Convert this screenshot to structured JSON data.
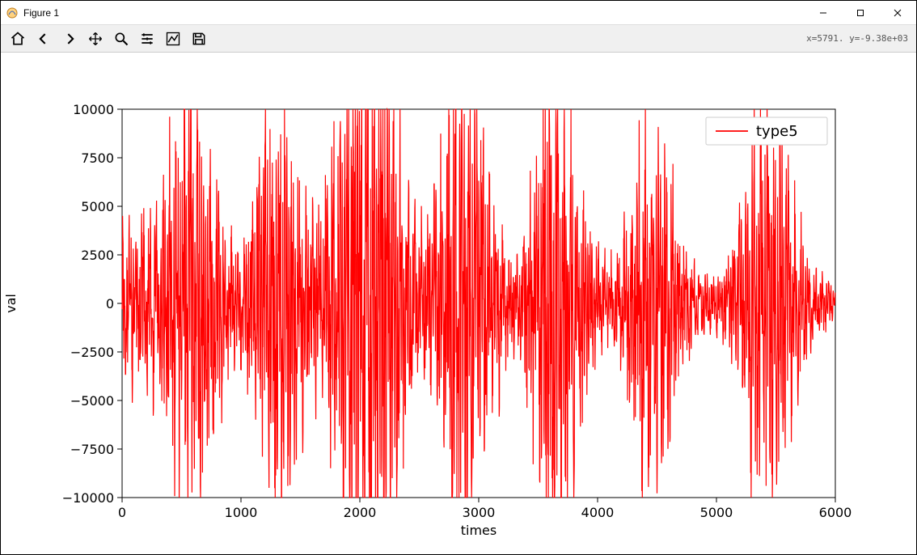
{
  "window": {
    "title": "Figure 1",
    "min_tooltip": "Minimize",
    "max_tooltip": "Maximize",
    "close_tooltip": "Close"
  },
  "toolbar": {
    "home": "Home",
    "back": "Back",
    "forward": "Forward",
    "pan": "Pan",
    "zoom": "Zoom",
    "subplots": "Configure subplots",
    "axes": "Edit axis",
    "save": "Save",
    "coord_readout": "x=5791.   y=-9.38e+03"
  },
  "chart": {
    "type": "line",
    "xlabel": "times",
    "ylabel": "val",
    "xlim": [
      0,
      6000
    ],
    "ylim": [
      -10000,
      10000
    ],
    "xtick_step": 1000,
    "ytick_step": 2500,
    "background_color": "#ffffff",
    "axis_color": "#000000",
    "tick_fontsize": 16,
    "label_fontsize": 16,
    "legend": {
      "position": "upper-right",
      "entries": [
        {
          "label": "type5",
          "color": "#ff0000"
        }
      ],
      "fontsize": 18,
      "border_color": "#cccccc"
    },
    "series": [
      {
        "name": "type5",
        "color": "#ff0000",
        "linewidth": 1.2,
        "burst_centers": [
          80,
          500,
          650,
          1250,
          1400,
          1950,
          2100,
          2250,
          2800,
          2950,
          3600,
          3750,
          4400,
          4550,
          5350,
          5500
        ],
        "burst_widths": [
          120,
          180,
          160,
          140,
          180,
          180,
          160,
          160,
          150,
          170,
          140,
          170,
          130,
          160,
          150,
          170
        ],
        "burst_amps": [
          2500,
          5000,
          6000,
          5000,
          4500,
          8000,
          6500,
          5000,
          5500,
          6500,
          6500,
          5000,
          4800,
          4000,
          4500,
          5000
        ],
        "baseline_amp": 900,
        "n_points": 6000,
        "y_extent_note": "signal oscillates around 0; bursts reach roughly ±8000 at x≈1950, typical bursts ±4000–6500; quiet stretches ±500–1500"
      }
    ]
  }
}
